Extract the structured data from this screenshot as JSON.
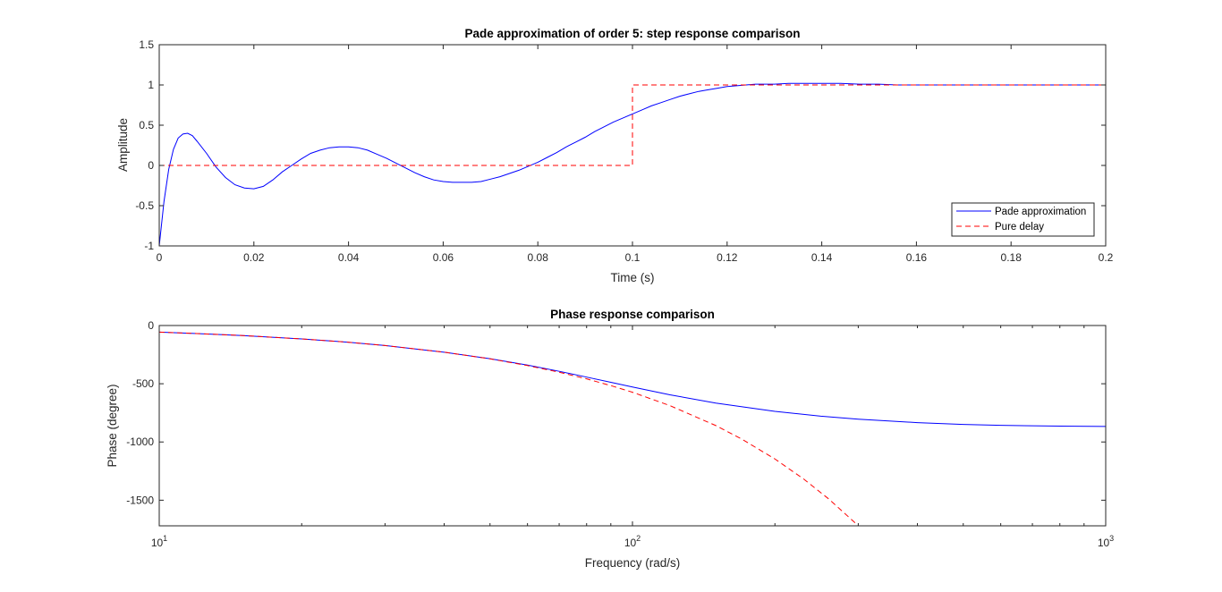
{
  "chart_data": [
    {
      "type": "line",
      "title": "Pade approximation of order 5: step response comparison",
      "xlabel": "Time (s)",
      "ylabel": "Amplitude",
      "xlim": [
        0,
        0.2
      ],
      "ylim": [
        -1,
        1.5
      ],
      "xscale": "linear",
      "xticks": [
        0,
        0.02,
        0.04,
        0.06,
        0.08,
        0.1,
        0.12,
        0.14,
        0.16,
        0.18,
        0.2
      ],
      "xtick_labels": [
        "0",
        "0.02",
        "0.04",
        "0.06",
        "0.08",
        "0.1",
        "0.12",
        "0.14",
        "0.16",
        "0.18",
        "0.2"
      ],
      "yticks": [
        -1,
        -0.5,
        0,
        0.5,
        1,
        1.5
      ],
      "ytick_labels": [
        "-1",
        "-0.5",
        "0",
        "0.5",
        "1",
        "1.5"
      ],
      "grid": false,
      "legend_position": "bottom-right",
      "series": [
        {
          "name": "Pade approximation",
          "color": "#0000ff",
          "style": "solid",
          "x": [
            0,
            0.001,
            0.002,
            0.003,
            0.004,
            0.005,
            0.006,
            0.007,
            0.008,
            0.01,
            0.012,
            0.014,
            0.016,
            0.018,
            0.02,
            0.022,
            0.024,
            0.026,
            0.028,
            0.03,
            0.032,
            0.034,
            0.036,
            0.038,
            0.04,
            0.042,
            0.044,
            0.046,
            0.048,
            0.05,
            0.052,
            0.054,
            0.056,
            0.058,
            0.06,
            0.062,
            0.064,
            0.066,
            0.068,
            0.07,
            0.072,
            0.074,
            0.076,
            0.078,
            0.08,
            0.082,
            0.084,
            0.086,
            0.088,
            0.09,
            0.092,
            0.094,
            0.096,
            0.098,
            0.1,
            0.102,
            0.104,
            0.106,
            0.108,
            0.11,
            0.112,
            0.114,
            0.116,
            0.118,
            0.12,
            0.122,
            0.124,
            0.126,
            0.128,
            0.13,
            0.133,
            0.136,
            0.14,
            0.144,
            0.148,
            0.152,
            0.156,
            0.16,
            0.165,
            0.17,
            0.18,
            0.19,
            0.2
          ],
          "y": [
            -1,
            -0.45,
            -0.05,
            0.2,
            0.34,
            0.39,
            0.4,
            0.37,
            0.3,
            0.15,
            -0.02,
            -0.15,
            -0.24,
            -0.28,
            -0.29,
            -0.26,
            -0.18,
            -0.08,
            0.0,
            0.08,
            0.15,
            0.19,
            0.22,
            0.23,
            0.23,
            0.22,
            0.19,
            0.14,
            0.09,
            0.03,
            -0.03,
            -0.09,
            -0.14,
            -0.18,
            -0.2,
            -0.21,
            -0.21,
            -0.21,
            -0.2,
            -0.17,
            -0.14,
            -0.1,
            -0.06,
            -0.01,
            0.04,
            0.1,
            0.16,
            0.23,
            0.29,
            0.35,
            0.42,
            0.48,
            0.54,
            0.59,
            0.64,
            0.69,
            0.74,
            0.78,
            0.82,
            0.86,
            0.89,
            0.92,
            0.94,
            0.96,
            0.98,
            0.99,
            1.0,
            1.01,
            1.01,
            1.01,
            1.02,
            1.02,
            1.02,
            1.02,
            1.01,
            1.01,
            1.0,
            1.0,
            1.0,
            1.0,
            1.0,
            1.0,
            1.0
          ]
        },
        {
          "name": "Pure delay",
          "color": "#ff0000",
          "style": "dashed",
          "x": [
            0,
            0.1,
            0.1,
            0.2
          ],
          "y": [
            0,
            0,
            1,
            1
          ]
        }
      ]
    },
    {
      "type": "line",
      "title": "Phase response comparison",
      "xlabel": "Frequency (rad/s)",
      "ylabel": "Phase (degree)",
      "xlim": [
        10,
        1000
      ],
      "ylim": [
        -1720,
        0
      ],
      "xscale": "log",
      "yticks": [
        0,
        -500,
        -1000,
        -1500
      ],
      "ytick_labels": [
        "0",
        "-500",
        "-1000",
        "-1500"
      ],
      "xtick_labels": [
        {
          "base": "10",
          "exp": "1"
        },
        {
          "base": "10",
          "exp": "2"
        },
        {
          "base": "10",
          "exp": "3"
        }
      ],
      "grid": false,
      "series": [
        {
          "color": "#0000ff",
          "style": "solid",
          "x": [
            10,
            12,
            15,
            20,
            25,
            30,
            40,
            50,
            60,
            70,
            80,
            90,
            100,
            120,
            150,
            200,
            250,
            300,
            400,
            500,
            600,
            800,
            1000
          ],
          "y": [
            -57,
            -69,
            -86,
            -115,
            -143,
            -172,
            -229,
            -285,
            -340,
            -393,
            -443,
            -488,
            -528,
            -595,
            -666,
            -737,
            -778,
            -804,
            -834,
            -849,
            -857,
            -864,
            -867
          ]
        },
        {
          "color": "#ff0000",
          "style": "dashed",
          "x": [
            10,
            12,
            15,
            20,
            25,
            30,
            40,
            50,
            60,
            70,
            80,
            90,
            100,
            120,
            150,
            170,
            200,
            230,
            260,
            300
          ],
          "y": [
            -57,
            -69,
            -86,
            -115,
            -143,
            -172,
            -229,
            -286,
            -344,
            -401,
            -458,
            -516,
            -573,
            -688,
            -859,
            -974,
            -1146,
            -1318,
            -1490,
            -1719
          ]
        }
      ]
    }
  ]
}
